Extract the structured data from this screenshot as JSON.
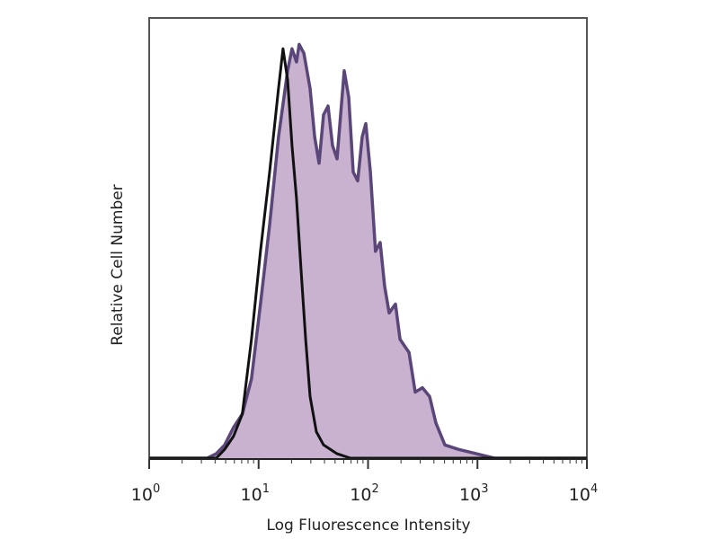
{
  "chart_data": {
    "type": "area",
    "title": "",
    "xlabel": "Log Fluorescence Intensity",
    "ylabel": "Relative Cell Number",
    "x_scale": "log",
    "xlim": [
      1,
      10000
    ],
    "ylim": [
      0,
      100
    ],
    "x_ticks": [
      {
        "base": "10",
        "exp": "0"
      },
      {
        "base": "10",
        "exp": "1"
      },
      {
        "base": "10",
        "exp": "2"
      },
      {
        "base": "10",
        "exp": "3"
      },
      {
        "base": "10",
        "exp": "4"
      }
    ],
    "grid": false,
    "legend": "none",
    "series": [
      {
        "style": "filled",
        "fill_color": "#c8b2cf",
        "line_color": "#5a4678",
        "x": [
          1,
          3.4,
          4.1,
          4.9,
          5.9,
          7.1,
          8.6,
          10.4,
          12.6,
          15.2,
          18.4,
          20.2,
          22.2,
          23.5,
          25.9,
          29.5,
          32.5,
          35.7,
          39.2,
          43.1,
          47.4,
          52.1,
          60.6,
          66.6,
          73.2,
          80.5,
          88.4,
          95.3,
          105,
          117,
          129,
          142,
          156,
          178,
          196,
          237,
          270,
          314,
          365,
          417,
          504,
          669,
          977,
          1426,
          10000
        ],
        "y": [
          0,
          0,
          1,
          3,
          7,
          10,
          18,
          35,
          53,
          73,
          88,
          93,
          90,
          94,
          92,
          84,
          73,
          67,
          78,
          80,
          71,
          68,
          88,
          82,
          65,
          63,
          73,
          76,
          65,
          47,
          49,
          39,
          33,
          35,
          27,
          24,
          15,
          16,
          14,
          8,
          3,
          2,
          1,
          0,
          0
        ]
      },
      {
        "style": "outline",
        "line_color": "#111111",
        "x": [
          1,
          3.4,
          4.1,
          4.9,
          5.9,
          7.1,
          8.6,
          10.4,
          12.6,
          15.2,
          16.7,
          18.4,
          20.2,
          22.2,
          24.4,
          26.9,
          29.5,
          33.7,
          39.2,
          52.1,
          69.2,
          10000
        ],
        "y": [
          0,
          0,
          0,
          2,
          5,
          10,
          27,
          47,
          65,
          84,
          93,
          86,
          71,
          59,
          43,
          27,
          14,
          6,
          3,
          1,
          0,
          0
        ]
      }
    ]
  }
}
